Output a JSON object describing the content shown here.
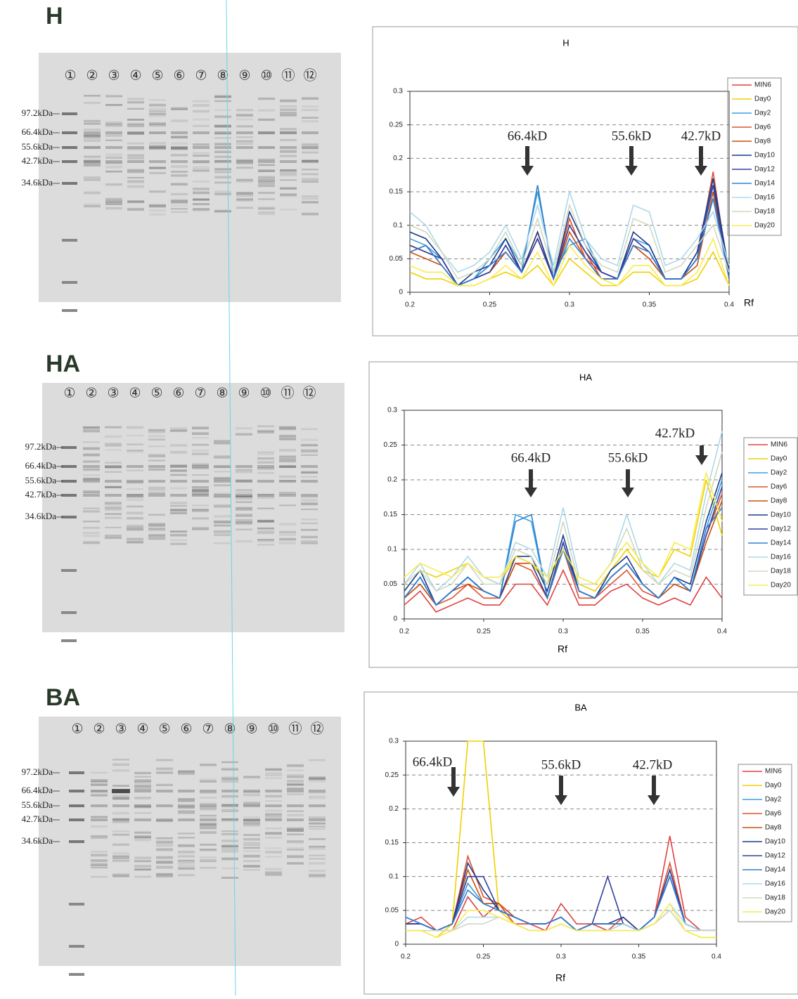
{
  "gels": [
    {
      "label": "H",
      "lanes": [
        "①",
        "②",
        "③",
        "④",
        "⑤",
        "⑥",
        "⑦",
        "⑧",
        "⑨",
        "⑩",
        "⑪",
        "⑫"
      ],
      "markers": [
        "97.2kDa",
        "66.4kDa",
        "55.6kDa",
        "42.7kDa",
        "34.6kDa"
      ]
    },
    {
      "label": "HA",
      "lanes": [
        "①",
        "②",
        "③",
        "④",
        "⑤",
        "⑥",
        "⑦",
        "⑧",
        "⑨",
        "⑩",
        "⑪",
        "⑫"
      ],
      "markers": [
        "97.2kDa",
        "66.4kDa",
        "55.6kDa",
        "42.7kDa",
        "34.6kDa"
      ]
    },
    {
      "label": "BA",
      "lanes": [
        "①",
        "②",
        "③",
        "④",
        "⑤",
        "⑥",
        "⑦",
        "⑧",
        "⑨",
        "⑩",
        "⑪",
        "⑫"
      ],
      "markers": [
        "97.2kDa",
        "66.4kDa",
        "55.6kDa",
        "42.7kDa",
        "34.6kDa"
      ]
    }
  ],
  "chart_data": [
    {
      "type": "line",
      "title": "H",
      "x_label": "Rf",
      "annotations": [
        "66.4kD",
        "55.6kD",
        "42.7kD"
      ],
      "x": [
        0.2,
        0.21,
        0.22,
        0.23,
        0.24,
        0.25,
        0.26,
        0.27,
        0.28,
        0.29,
        0.3,
        0.31,
        0.32,
        0.33,
        0.34,
        0.35,
        0.36,
        0.37,
        0.38,
        0.39,
        0.4
      ],
      "xlim": [
        0.2,
        0.4
      ],
      "xticks": [
        0.2,
        0.25,
        0.3,
        0.35,
        0.4
      ],
      "ylim": [
        0,
        0.3
      ],
      "yticks": [
        0,
        0.05,
        0.1,
        0.15,
        0.2,
        0.25,
        0.3
      ],
      "grid": true,
      "legend": "right",
      "series": [
        {
          "name": "MIN6",
          "color": "#e04040",
          "values": [
            0.06,
            0.07,
            0.04,
            0.01,
            0.02,
            0.03,
            0.06,
            0.03,
            0.08,
            0.02,
            0.1,
            0.06,
            0.02,
            0.02,
            0.07,
            0.05,
            0.02,
            0.02,
            0.05,
            0.17,
            0.02
          ]
        },
        {
          "name": "Day0",
          "color": "#f0d000",
          "values": [
            0.03,
            0.02,
            0.02,
            0.01,
            0.01,
            0.02,
            0.03,
            0.02,
            0.04,
            0.01,
            0.05,
            0.03,
            0.01,
            0.01,
            0.03,
            0.03,
            0.01,
            0.01,
            0.02,
            0.06,
            0.01
          ]
        },
        {
          "name": "Day2",
          "color": "#3aa0e0",
          "values": [
            0.08,
            0.07,
            0.05,
            0.01,
            0.02,
            0.05,
            0.08,
            0.04,
            0.15,
            0.03,
            0.07,
            0.08,
            0.03,
            0.02,
            0.08,
            0.07,
            0.02,
            0.02,
            0.06,
            0.16,
            0.03
          ]
        },
        {
          "name": "Day6",
          "color": "#e05030",
          "values": [
            0.07,
            0.06,
            0.05,
            0.01,
            0.02,
            0.03,
            0.07,
            0.03,
            0.09,
            0.02,
            0.11,
            0.05,
            0.03,
            0.02,
            0.08,
            0.06,
            0.02,
            0.02,
            0.05,
            0.18,
            0.02
          ]
        },
        {
          "name": "Day8",
          "color": "#c85010",
          "values": [
            0.06,
            0.05,
            0.04,
            0.01,
            0.02,
            0.03,
            0.06,
            0.03,
            0.08,
            0.02,
            0.09,
            0.05,
            0.02,
            0.02,
            0.07,
            0.05,
            0.02,
            0.02,
            0.04,
            0.15,
            0.02
          ]
        },
        {
          "name": "Day10",
          "color": "#1a3a8a",
          "values": [
            0.09,
            0.08,
            0.05,
            0.01,
            0.03,
            0.04,
            0.08,
            0.03,
            0.09,
            0.02,
            0.12,
            0.07,
            0.03,
            0.02,
            0.09,
            0.07,
            0.02,
            0.02,
            0.06,
            0.17,
            0.03
          ]
        },
        {
          "name": "Day12",
          "color": "#3040a0",
          "values": [
            0.07,
            0.06,
            0.05,
            0.01,
            0.02,
            0.03,
            0.07,
            0.03,
            0.08,
            0.02,
            0.1,
            0.06,
            0.03,
            0.02,
            0.08,
            0.06,
            0.02,
            0.02,
            0.05,
            0.16,
            0.02
          ]
        },
        {
          "name": "Day14",
          "color": "#3080d0",
          "values": [
            0.06,
            0.07,
            0.04,
            0.01,
            0.02,
            0.04,
            0.06,
            0.03,
            0.16,
            0.02,
            0.08,
            0.05,
            0.02,
            0.02,
            0.07,
            0.06,
            0.02,
            0.02,
            0.05,
            0.14,
            0.02
          ]
        },
        {
          "name": "Day16",
          "color": "#b0d8e8",
          "values": [
            0.12,
            0.1,
            0.06,
            0.03,
            0.04,
            0.06,
            0.1,
            0.05,
            0.13,
            0.04,
            0.15,
            0.08,
            0.05,
            0.04,
            0.13,
            0.12,
            0.04,
            0.05,
            0.08,
            0.12,
            0.04
          ]
        },
        {
          "name": "Day18",
          "color": "#d0d8c0",
          "values": [
            0.1,
            0.09,
            0.06,
            0.02,
            0.03,
            0.05,
            0.09,
            0.04,
            0.11,
            0.03,
            0.13,
            0.07,
            0.04,
            0.03,
            0.11,
            0.1,
            0.03,
            0.04,
            0.07,
            0.1,
            0.03
          ]
        },
        {
          "name": "Day20",
          "color": "#f8ec50",
          "values": [
            0.04,
            0.03,
            0.03,
            0.01,
            0.01,
            0.02,
            0.04,
            0.02,
            0.06,
            0.01,
            0.07,
            0.04,
            0.02,
            0.01,
            0.04,
            0.04,
            0.01,
            0.01,
            0.03,
            0.08,
            0.01
          ]
        }
      ]
    },
    {
      "type": "line",
      "title": "HA",
      "x_label": "Rf",
      "annotations": [
        "66.4kD",
        "55.6kD",
        "42.7kD"
      ],
      "x": [
        0.2,
        0.21,
        0.22,
        0.23,
        0.24,
        0.25,
        0.26,
        0.27,
        0.28,
        0.29,
        0.3,
        0.31,
        0.32,
        0.33,
        0.34,
        0.35,
        0.36,
        0.37,
        0.38,
        0.39,
        0.4
      ],
      "xlim": [
        0.2,
        0.4
      ],
      "xticks": [
        0.2,
        0.25,
        0.3,
        0.35,
        0.4
      ],
      "ylim": [
        0,
        0.3
      ],
      "yticks": [
        0,
        0.05,
        0.1,
        0.15,
        0.2,
        0.25,
        0.3
      ],
      "grid": true,
      "legend": "right",
      "series": [
        {
          "name": "MIN6",
          "color": "#e04040",
          "values": [
            0.02,
            0.04,
            0.01,
            0.02,
            0.03,
            0.02,
            0.02,
            0.05,
            0.05,
            0.02,
            0.07,
            0.02,
            0.02,
            0.04,
            0.05,
            0.03,
            0.02,
            0.03,
            0.02,
            0.06,
            0.03
          ]
        },
        {
          "name": "Day0",
          "color": "#f0d000",
          "values": [
            0.04,
            0.07,
            0.06,
            0.07,
            0.08,
            0.06,
            0.05,
            0.09,
            0.08,
            0.05,
            0.1,
            0.05,
            0.04,
            0.07,
            0.1,
            0.07,
            0.06,
            0.1,
            0.09,
            0.2,
            0.12
          ]
        },
        {
          "name": "Day2",
          "color": "#3aa0e0",
          "values": [
            0.03,
            0.06,
            0.02,
            0.04,
            0.06,
            0.04,
            0.03,
            0.15,
            0.14,
            0.03,
            0.11,
            0.04,
            0.03,
            0.06,
            0.08,
            0.05,
            0.03,
            0.06,
            0.04,
            0.13,
            0.2
          ]
        },
        {
          "name": "Day6",
          "color": "#e05030",
          "values": [
            0.03,
            0.05,
            0.02,
            0.03,
            0.05,
            0.03,
            0.03,
            0.08,
            0.07,
            0.03,
            0.1,
            0.03,
            0.03,
            0.05,
            0.07,
            0.04,
            0.03,
            0.05,
            0.04,
            0.12,
            0.18
          ]
        },
        {
          "name": "Day8",
          "color": "#c85010",
          "values": [
            0.03,
            0.05,
            0.02,
            0.04,
            0.05,
            0.04,
            0.03,
            0.08,
            0.08,
            0.03,
            0.1,
            0.04,
            0.03,
            0.06,
            0.08,
            0.05,
            0.03,
            0.05,
            0.04,
            0.11,
            0.17
          ]
        },
        {
          "name": "Day10",
          "color": "#1a3a8a",
          "values": [
            0.04,
            0.07,
            0.02,
            0.04,
            0.06,
            0.04,
            0.03,
            0.09,
            0.09,
            0.04,
            0.12,
            0.04,
            0.03,
            0.07,
            0.09,
            0.05,
            0.03,
            0.06,
            0.05,
            0.14,
            0.21
          ]
        },
        {
          "name": "Day12",
          "color": "#3040a0",
          "values": [
            0.03,
            0.06,
            0.02,
            0.04,
            0.06,
            0.04,
            0.03,
            0.09,
            0.08,
            0.03,
            0.11,
            0.04,
            0.03,
            0.06,
            0.08,
            0.05,
            0.03,
            0.06,
            0.04,
            0.12,
            0.19
          ]
        },
        {
          "name": "Day14",
          "color": "#3080d0",
          "values": [
            0.03,
            0.06,
            0.02,
            0.04,
            0.06,
            0.04,
            0.03,
            0.14,
            0.15,
            0.03,
            0.1,
            0.04,
            0.03,
            0.06,
            0.08,
            0.05,
            0.03,
            0.06,
            0.04,
            0.13,
            0.16
          ]
        },
        {
          "name": "Day16",
          "color": "#b0d8e8",
          "values": [
            0.05,
            0.08,
            0.04,
            0.06,
            0.09,
            0.06,
            0.05,
            0.11,
            0.1,
            0.06,
            0.16,
            0.06,
            0.05,
            0.08,
            0.15,
            0.08,
            0.05,
            0.08,
            0.07,
            0.18,
            0.27
          ]
        },
        {
          "name": "Day18",
          "color": "#d0d8c0",
          "values": [
            0.05,
            0.07,
            0.04,
            0.05,
            0.08,
            0.05,
            0.05,
            0.1,
            0.09,
            0.05,
            0.14,
            0.05,
            0.05,
            0.08,
            0.13,
            0.07,
            0.05,
            0.07,
            0.06,
            0.16,
            0.24
          ]
        },
        {
          "name": "Day20",
          "color": "#f8ec50",
          "values": [
            0.06,
            0.08,
            0.07,
            0.06,
            0.08,
            0.06,
            0.06,
            0.09,
            0.08,
            0.06,
            0.1,
            0.06,
            0.05,
            0.08,
            0.11,
            0.08,
            0.06,
            0.11,
            0.1,
            0.21,
            0.14
          ]
        }
      ]
    },
    {
      "type": "line",
      "title": "BA",
      "x_label": "Rf",
      "annotations": [
        "66.4kD",
        "55.6kD",
        "42.7kD"
      ],
      "x": [
        0.2,
        0.21,
        0.22,
        0.23,
        0.24,
        0.25,
        0.26,
        0.27,
        0.28,
        0.29,
        0.3,
        0.31,
        0.32,
        0.33,
        0.34,
        0.35,
        0.36,
        0.37,
        0.38,
        0.39,
        0.4
      ],
      "xlim": [
        0.2,
        0.4
      ],
      "xticks": [
        0.2,
        0.25,
        0.3,
        0.35,
        0.4
      ],
      "ylim": [
        0,
        0.3
      ],
      "yticks": [
        0,
        0.05,
        0.1,
        0.15,
        0.2,
        0.25,
        0.3
      ],
      "grid": true,
      "legend": "right",
      "series": [
        {
          "name": "MIN6",
          "color": "#e04040",
          "values": [
            0.03,
            0.04,
            0.02,
            0.02,
            0.07,
            0.04,
            0.06,
            0.03,
            0.03,
            0.02,
            0.06,
            0.03,
            0.03,
            0.02,
            0.04,
            0.02,
            0.04,
            0.16,
            0.04,
            0.02,
            0.02
          ]
        },
        {
          "name": "Day0",
          "color": "#f0d000",
          "values": [
            0.02,
            0.02,
            0.01,
            0.03,
            0.3,
            0.3,
            0.05,
            0.03,
            0.02,
            0.02,
            0.03,
            0.02,
            0.02,
            0.02,
            0.03,
            0.02,
            0.03,
            0.05,
            0.02,
            0.01,
            0.01
          ]
        },
        {
          "name": "Day2",
          "color": "#3aa0e0",
          "values": [
            0.04,
            0.03,
            0.02,
            0.03,
            0.09,
            0.06,
            0.05,
            0.04,
            0.03,
            0.03,
            0.04,
            0.02,
            0.03,
            0.03,
            0.03,
            0.02,
            0.04,
            0.1,
            0.03,
            0.02,
            0.02
          ]
        },
        {
          "name": "Day6",
          "color": "#e05030",
          "values": [
            0.03,
            0.03,
            0.02,
            0.03,
            0.13,
            0.07,
            0.06,
            0.04,
            0.03,
            0.03,
            0.04,
            0.02,
            0.03,
            0.03,
            0.03,
            0.02,
            0.04,
            0.12,
            0.03,
            0.02,
            0.02
          ]
        },
        {
          "name": "Day8",
          "color": "#c85010",
          "values": [
            0.03,
            0.03,
            0.02,
            0.03,
            0.11,
            0.06,
            0.06,
            0.04,
            0.03,
            0.03,
            0.04,
            0.02,
            0.03,
            0.03,
            0.03,
            0.02,
            0.04,
            0.11,
            0.03,
            0.02,
            0.02
          ]
        },
        {
          "name": "Day10",
          "color": "#1a3a8a",
          "values": [
            0.03,
            0.03,
            0.02,
            0.03,
            0.12,
            0.08,
            0.05,
            0.04,
            0.03,
            0.03,
            0.04,
            0.02,
            0.03,
            0.03,
            0.04,
            0.02,
            0.04,
            0.1,
            0.03,
            0.02,
            0.02
          ]
        },
        {
          "name": "Day12",
          "color": "#3040a0",
          "values": [
            0.03,
            0.03,
            0.02,
            0.03,
            0.1,
            0.1,
            0.05,
            0.04,
            0.03,
            0.03,
            0.04,
            0.02,
            0.03,
            0.1,
            0.03,
            0.02,
            0.04,
            0.11,
            0.03,
            0.02,
            0.02
          ]
        },
        {
          "name": "Day14",
          "color": "#3080d0",
          "values": [
            0.04,
            0.03,
            0.02,
            0.03,
            0.08,
            0.06,
            0.05,
            0.04,
            0.03,
            0.03,
            0.04,
            0.02,
            0.03,
            0.03,
            0.03,
            0.02,
            0.04,
            0.1,
            0.03,
            0.02,
            0.02
          ]
        },
        {
          "name": "Day16",
          "color": "#b0d8e8",
          "values": [
            0.02,
            0.02,
            0.02,
            0.02,
            0.04,
            0.04,
            0.04,
            0.03,
            0.02,
            0.02,
            0.03,
            0.02,
            0.02,
            0.02,
            0.03,
            0.02,
            0.03,
            0.06,
            0.03,
            0.02,
            0.02
          ]
        },
        {
          "name": "Day18",
          "color": "#d0d8c0",
          "values": [
            0.02,
            0.02,
            0.02,
            0.02,
            0.03,
            0.03,
            0.04,
            0.03,
            0.02,
            0.02,
            0.03,
            0.02,
            0.02,
            0.02,
            0.02,
            0.02,
            0.03,
            0.05,
            0.02,
            0.02,
            0.02
          ]
        },
        {
          "name": "Day20",
          "color": "#f8ec50",
          "values": [
            0.02,
            0.02,
            0.01,
            0.02,
            0.05,
            0.05,
            0.04,
            0.03,
            0.02,
            0.02,
            0.03,
            0.02,
            0.02,
            0.02,
            0.02,
            0.02,
            0.03,
            0.06,
            0.02,
            0.01,
            0.01
          ]
        }
      ]
    }
  ]
}
